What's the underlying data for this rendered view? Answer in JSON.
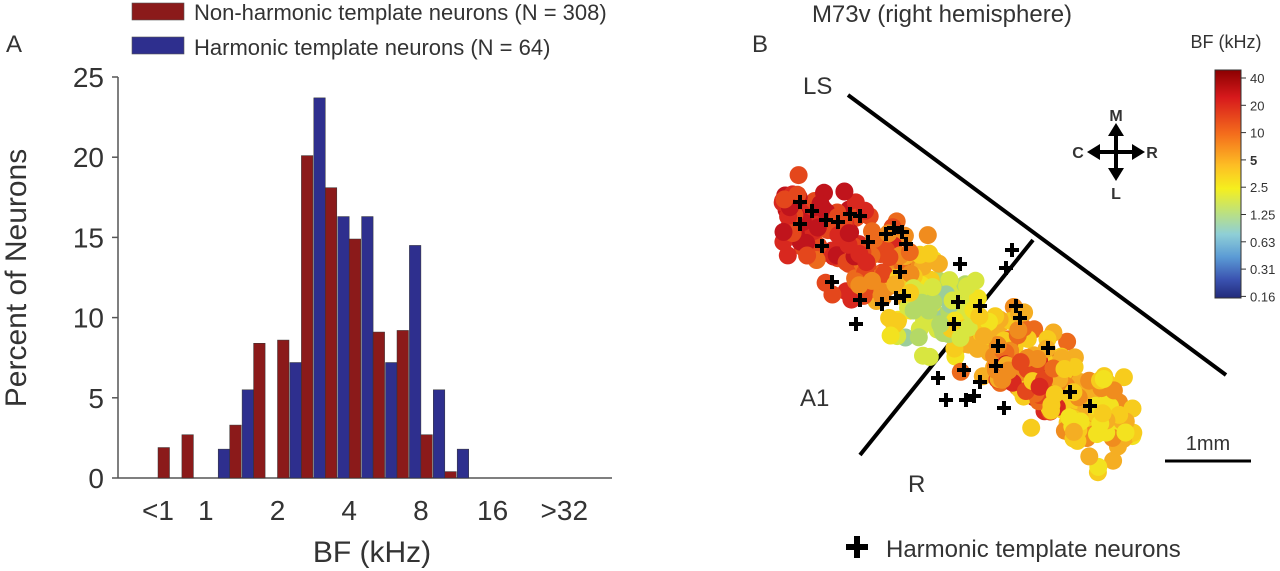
{
  "chart_data": [
    {
      "panel_label": "A",
      "type": "bar",
      "categories": [
        "<1",
        "",
        "1",
        "",
        "",
        "2",
        "",
        "",
        "4",
        "",
        "",
        "8",
        "",
        "",
        "16",
        "",
        "",
        ">32"
      ],
      "xticks": [
        "<1",
        "1",
        "2",
        "4",
        "8",
        "16",
        ">32"
      ],
      "series": [
        {
          "name": "Harmonic template neurons (N = 64)",
          "color": "#2e2f8e",
          "values": [
            0,
            0,
            0,
            1.8,
            5.5,
            0,
            7.2,
            23.7,
            16.3,
            16.3,
            7.2,
            14.5,
            5.5,
            1.8,
            0,
            0,
            0,
            0
          ]
        },
        {
          "name": "Non-harmonic template neurons (N = 308)",
          "color": "#8b1a1a",
          "values": [
            1.9,
            2.7,
            0,
            3.3,
            8.4,
            8.6,
            20.1,
            18.1,
            14.9,
            9.1,
            9.2,
            2.7,
            0.4,
            0,
            0,
            0,
            0,
            0
          ]
        }
      ],
      "legend_order": [
        "Non-harmonic template neurons (N = 308)",
        "Harmonic template neurons (N = 64)"
      ],
      "xlabel": "BF (kHz)",
      "ylabel": "Percent of Neurons",
      "ylim": [
        0,
        25
      ],
      "yticks": [
        0,
        5,
        10,
        15,
        20,
        25
      ],
      "grid": false,
      "legend_position": "top"
    },
    {
      "panel_label": "B",
      "type": "scatter",
      "title": "M73v (right hemisphere)",
      "colorbar": {
        "label": "BF (kHz)",
        "ticks": [
          "40",
          "20",
          "10",
          "5",
          "2.5",
          "1.25",
          "0.63",
          "0.31",
          "0.16"
        ]
      },
      "compass": {
        "up": "M",
        "down": "L",
        "left": "C",
        "right": "R"
      },
      "labels": {
        "sulcus": "LS",
        "field_a1": "A1",
        "field_r": "R"
      },
      "scale_bar": "1mm",
      "marker_legend": "Harmonic template neurons"
    }
  ],
  "scatter_colors": [
    "#c0141c",
    "#d8281f",
    "#e4471c",
    "#ec6a1c",
    "#f08c1e",
    "#f5ae23",
    "#f7cc1d",
    "#f3e21f",
    "#d8e640",
    "#b4d966",
    "#9ccd9a",
    "#93c6c6",
    "#8ab8dd"
  ]
}
